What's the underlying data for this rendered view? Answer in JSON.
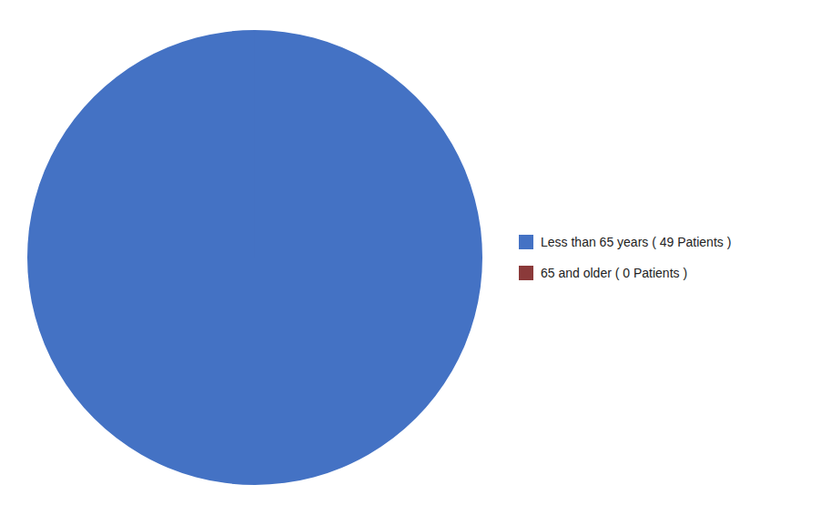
{
  "chart_data": {
    "type": "pie",
    "categories": [
      "Less than 65 years ( 49 Patients )",
      "65 and older ( 0 Patients )"
    ],
    "values": [
      49,
      0.0001
    ],
    "colors": [
      "#4472C4",
      "#8B3A3A"
    ],
    "legend": "right"
  }
}
